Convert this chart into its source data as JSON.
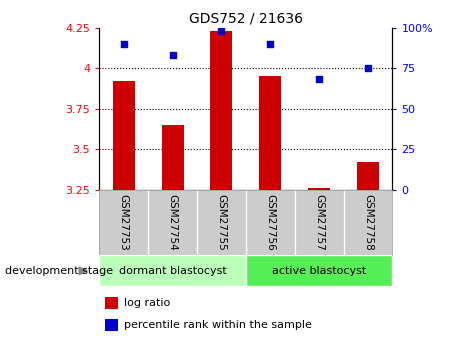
{
  "title": "GDS752 / 21636",
  "samples": [
    "GSM27753",
    "GSM27754",
    "GSM27755",
    "GSM27756",
    "GSM27757",
    "GSM27758"
  ],
  "log_ratio": [
    3.92,
    3.65,
    4.23,
    3.95,
    3.26,
    3.42
  ],
  "percentile_rank": [
    90,
    83,
    98,
    90,
    68,
    75
  ],
  "ylim_left": [
    3.25,
    4.25
  ],
  "ylim_right": [
    0,
    100
  ],
  "yticks_left": [
    3.25,
    3.5,
    3.75,
    4.0,
    4.25
  ],
  "ytick_labels_left": [
    "3.25",
    "3.5",
    "3.75",
    "4",
    "4.25"
  ],
  "yticks_right": [
    0,
    25,
    50,
    75,
    100
  ],
  "ytick_labels_right": [
    "0",
    "25",
    "50",
    "75",
    "100%"
  ],
  "grid_yticks": [
    3.5,
    3.75,
    4.0
  ],
  "bar_color": "#cc0000",
  "dot_color": "#0000cc",
  "bar_width": 0.45,
  "group1_label": "dormant blastocyst",
  "group2_label": "active blastocyst",
  "group1_color": "#bbffbb",
  "group2_color": "#55ee55",
  "dev_stage_label": "development stage",
  "legend_log_ratio": "log ratio",
  "legend_percentile": "percentile rank within the sample",
  "label_bg_color": "#cccccc",
  "divider_color": "#999999"
}
